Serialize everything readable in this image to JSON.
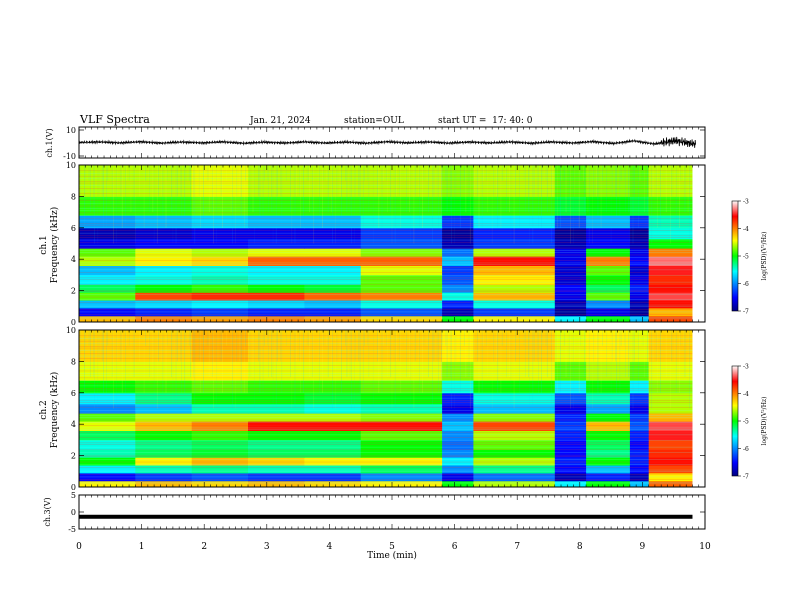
{
  "header": {
    "title": "VLF Spectra",
    "date": "Jan. 21, 2024",
    "station": "station=OUL",
    "start": "start UT =  17: 40: 0"
  },
  "chart_data": [
    {
      "type": "line",
      "panel": "ch1-waveform",
      "ylabel": "ch.1(V)",
      "ylim": [
        -10,
        10
      ],
      "yticks": [
        "10",
        "-10"
      ],
      "xlim": [
        0,
        10
      ],
      "series": [
        {
          "values": [
            0,
            0.9,
            -0.6,
            1.2,
            -1.0,
            0.8,
            -0.7,
            1.1,
            -1.3,
            0.6,
            -0.8,
            1.0,
            -0.9,
            0.7,
            -1.1,
            1.3,
            -0.6,
            0.9,
            -1.0,
            0.8,
            -0.7,
            1.0,
            -1.2,
            0.9,
            -0.8,
            1.4,
            -1.5,
            2.6,
            -2.4,
            3.0,
            -2.8
          ]
        }
      ]
    },
    {
      "type": "heatmap",
      "panel": "ch1-spectrogram",
      "ylabel": "Frequency (kHz)",
      "channel_label": "ch.1",
      "ylim": [
        0,
        10
      ],
      "yticks": [
        "0",
        "2",
        "4",
        "6",
        "8",
        "10"
      ],
      "xlim": [
        0,
        9.8
      ],
      "colorbar": {
        "label": "log(PSD)(V²/Hz)",
        "ticks": [
          "-3",
          "-4",
          "-5",
          "-6",
          "-7"
        ],
        "range": [
          -7,
          -3
        ]
      },
      "bands_khz": [
        0,
        0.4,
        0.9,
        1.4,
        1.9,
        2.4,
        3.0,
        3.6,
        4.2,
        4.7,
        5.3,
        6.0,
        6.8,
        8.0,
        10
      ],
      "time_bins_min": [
        0,
        0.9,
        1.8,
        2.7,
        3.6,
        4.5,
        5.8,
        6.3,
        7.6,
        8.1,
        8.8,
        9.1,
        9.8
      ],
      "log_psd": [
        [
          -4.2,
          -4.0,
          -4.1,
          -4.0,
          -4.1,
          -4.3,
          -5.0,
          -4.4,
          -5.6,
          -5.0,
          -5.8,
          -3.8
        ],
        [
          -6.5,
          -6.4,
          -6.3,
          -6.4,
          -6.4,
          -6.2,
          -6.8,
          -6.3,
          -6.9,
          -6.6,
          -6.9,
          -4.2
        ],
        [
          -5.8,
          -5.7,
          -5.6,
          -5.7,
          -5.8,
          -5.5,
          -6.4,
          -5.5,
          -6.8,
          -6.0,
          -6.8,
          -3.6
        ],
        [
          -4.8,
          -3.8,
          -3.7,
          -3.7,
          -3.9,
          -4.0,
          -5.5,
          -4.2,
          -6.6,
          -4.8,
          -6.6,
          -3.4
        ],
        [
          -5.2,
          -5.0,
          -4.9,
          -5.0,
          -5.1,
          -4.8,
          -6.0,
          -4.6,
          -6.5,
          -5.2,
          -6.4,
          -3.6
        ],
        [
          -5.6,
          -5.5,
          -5.4,
          -5.5,
          -5.5,
          -4.8,
          -6.2,
          -4.4,
          -6.7,
          -5.0,
          -6.6,
          -3.7
        ],
        [
          -5.8,
          -5.6,
          -5.5,
          -5.6,
          -5.6,
          -4.5,
          -6.3,
          -4.2,
          -6.7,
          -4.8,
          -6.7,
          -3.5
        ],
        [
          -4.6,
          -4.4,
          -4.3,
          -3.9,
          -3.9,
          -3.9,
          -5.8,
          -3.6,
          -6.6,
          -4.0,
          -6.5,
          -3.3
        ],
        [
          -4.8,
          -4.5,
          -4.6,
          -4.5,
          -4.5,
          -4.7,
          -6.1,
          -4.6,
          -6.6,
          -5.0,
          -6.6,
          -4.0
        ],
        [
          -6.6,
          -6.5,
          -6.5,
          -6.4,
          -6.4,
          -6.2,
          -6.8,
          -6.3,
          -6.8,
          -6.5,
          -6.8,
          -5.0
        ],
        [
          -6.8,
          -6.7,
          -6.6,
          -6.6,
          -6.6,
          -6.3,
          -6.9,
          -6.4,
          -6.9,
          -6.6,
          -6.9,
          -5.5
        ],
        [
          -5.9,
          -5.8,
          -5.7,
          -5.8,
          -5.8,
          -5.5,
          -6.3,
          -5.6,
          -6.2,
          -5.8,
          -6.3,
          -5.4
        ],
        [
          -4.9,
          -4.9,
          -4.8,
          -4.9,
          -4.9,
          -4.9,
          -5.0,
          -4.9,
          -5.1,
          -5.0,
          -5.1,
          -4.9
        ],
        [
          -4.6,
          -4.6,
          -4.5,
          -4.6,
          -4.6,
          -4.6,
          -4.7,
          -4.6,
          -4.8,
          -4.7,
          -4.8,
          -4.6
        ]
      ]
    },
    {
      "type": "heatmap",
      "panel": "ch2-spectrogram",
      "ylabel": "Frequency (kHz)",
      "channel_label": "ch.2",
      "ylim": [
        0,
        10
      ],
      "yticks": [
        "0",
        "2",
        "4",
        "6",
        "8",
        "10"
      ],
      "xlim": [
        0,
        9.8
      ],
      "colorbar": {
        "label": "log(PSD)(V²/Hz)",
        "ticks": [
          "-3",
          "-4",
          "-5",
          "-6",
          "-7"
        ],
        "range": [
          -7,
          -3
        ]
      },
      "bands_khz": [
        0,
        0.4,
        0.9,
        1.4,
        1.9,
        2.4,
        3.0,
        3.6,
        4.2,
        4.7,
        5.3,
        6.0,
        6.8,
        8.0,
        10
      ],
      "time_bins_min": [
        0,
        0.9,
        1.8,
        2.7,
        3.6,
        4.5,
        5.8,
        6.3,
        7.6,
        8.1,
        8.8,
        9.1,
        9.8
      ],
      "log_psd": [
        [
          -4.4,
          -4.2,
          -4.3,
          -4.2,
          -4.3,
          -4.4,
          -5.0,
          -4.6,
          -5.6,
          -5.0,
          -5.8,
          -3.9
        ],
        [
          -6.5,
          -6.3,
          -6.2,
          -6.3,
          -6.3,
          -6.0,
          -6.6,
          -6.1,
          -6.8,
          -6.4,
          -6.8,
          -4.4
        ],
        [
          -5.6,
          -5.4,
          -5.3,
          -5.4,
          -5.4,
          -5.2,
          -6.0,
          -5.3,
          -6.5,
          -5.8,
          -6.5,
          -3.8
        ],
        [
          -5.0,
          -4.4,
          -4.2,
          -4.3,
          -4.4,
          -4.4,
          -5.6,
          -4.6,
          -6.4,
          -5.0,
          -6.4,
          -3.6
        ],
        [
          -5.4,
          -5.2,
          -5.1,
          -5.2,
          -5.2,
          -5.0,
          -6.0,
          -5.0,
          -6.5,
          -5.3,
          -6.4,
          -3.7
        ],
        [
          -5.5,
          -5.3,
          -5.2,
          -5.3,
          -5.3,
          -5.0,
          -6.1,
          -4.8,
          -6.5,
          -5.2,
          -6.5,
          -3.8
        ],
        [
          -5.2,
          -5.0,
          -4.9,
          -5.0,
          -5.0,
          -4.8,
          -6.0,
          -4.6,
          -6.4,
          -5.0,
          -6.4,
          -3.5
        ],
        [
          -4.5,
          -4.2,
          -4.0,
          -3.6,
          -3.6,
          -3.6,
          -5.8,
          -3.8,
          -6.3,
          -4.2,
          -6.2,
          -3.4
        ],
        [
          -4.8,
          -4.6,
          -4.6,
          -4.6,
          -4.6,
          -4.7,
          -6.0,
          -4.7,
          -6.4,
          -5.0,
          -6.3,
          -4.2
        ],
        [
          -6.0,
          -5.8,
          -5.4,
          -5.4,
          -5.5,
          -5.4,
          -6.6,
          -5.8,
          -6.6,
          -5.9,
          -6.6,
          -4.6
        ],
        [
          -5.6,
          -5.3,
          -5.0,
          -5.0,
          -5.1,
          -5.0,
          -6.4,
          -5.5,
          -6.2,
          -5.4,
          -6.3,
          -4.6
        ],
        [
          -5.0,
          -4.9,
          -4.8,
          -4.9,
          -4.9,
          -4.8,
          -5.5,
          -5.0,
          -5.6,
          -5.0,
          -5.6,
          -4.7
        ],
        [
          -4.5,
          -4.5,
          -4.4,
          -4.5,
          -4.5,
          -4.5,
          -4.7,
          -4.5,
          -4.8,
          -4.6,
          -4.8,
          -4.5
        ],
        [
          -4.3,
          -4.3,
          -4.2,
          -4.3,
          -4.3,
          -4.3,
          -4.4,
          -4.3,
          -4.5,
          -4.4,
          -4.5,
          -4.3
        ]
      ]
    },
    {
      "type": "line",
      "panel": "ch3-waveform",
      "ylabel": "ch.3(V)",
      "ylim": [
        -5,
        5
      ],
      "yticks": [
        "5",
        "0",
        "-5"
      ],
      "xlim": [
        0,
        10
      ],
      "xlabel": "Time (min)",
      "xticks": [
        "0",
        "1",
        "2",
        "3",
        "4",
        "5",
        "6",
        "7",
        "8",
        "9",
        "10"
      ],
      "series": [
        {
          "values": [
            -1.4,
            -1.4,
            -1.4,
            -1.4,
            -1.4,
            -1.4,
            -1.4,
            -1.4,
            -1.4,
            -1.4,
            -1.4
          ]
        }
      ]
    }
  ]
}
